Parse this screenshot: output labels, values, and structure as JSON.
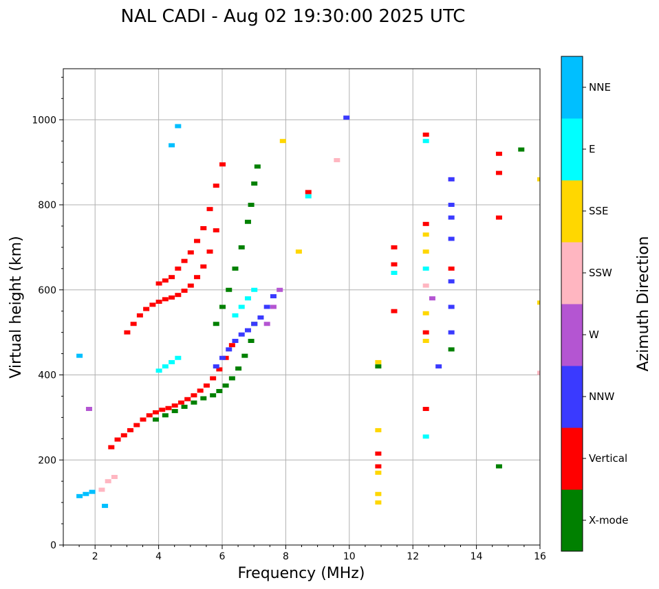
{
  "chart_data": {
    "type": "scatter",
    "title": "NAL CADI - Aug 02 19:30:00 2025 UTC",
    "xlabel": "Frequency (MHz)",
    "ylabel": "Virtual height (km)",
    "xlim": [
      1,
      16
    ],
    "ylim": [
      0,
      1120
    ],
    "x_ticks": [
      2,
      4,
      6,
      8,
      10,
      12,
      14,
      16
    ],
    "y_ticks": [
      0,
      200,
      400,
      600,
      800,
      1000
    ],
    "grid": true,
    "colorbar": {
      "label": "Azimuth Direction",
      "position": "right",
      "categories": [
        {
          "name": "X-mode",
          "color": "#008000"
        },
        {
          "name": "Vertical",
          "color": "#ff0000"
        },
        {
          "name": "NNW",
          "color": "#3a3aff"
        },
        {
          "name": "W",
          "color": "#b455d2"
        },
        {
          "name": "SSW",
          "color": "#ffb6c1"
        },
        {
          "name": "SSE",
          "color": "#ffd700"
        },
        {
          "name": "E",
          "color": "#00ffff"
        },
        {
          "name": "NNE",
          "color": "#00bfff"
        }
      ]
    },
    "traces": [
      {
        "category": "Vertical",
        "points": [
          [
            2.5,
            230
          ],
          [
            2.7,
            248
          ],
          [
            2.9,
            258
          ],
          [
            3.1,
            270
          ],
          [
            3.3,
            282
          ],
          [
            3.5,
            295
          ],
          [
            3.7,
            305
          ],
          [
            3.9,
            312
          ],
          [
            4.1,
            318
          ],
          [
            4.3,
            322
          ],
          [
            4.5,
            328
          ],
          [
            4.7,
            335
          ],
          [
            4.9,
            343
          ],
          [
            5.1,
            352
          ],
          [
            5.3,
            363
          ],
          [
            5.5,
            375
          ],
          [
            5.7,
            392
          ],
          [
            5.9,
            413
          ],
          [
            6.1,
            440
          ],
          [
            6.3,
            470
          ]
        ]
      },
      {
        "category": "X-mode",
        "points": [
          [
            3.9,
            295
          ],
          [
            4.2,
            305
          ],
          [
            4.5,
            315
          ],
          [
            4.8,
            325
          ],
          [
            5.1,
            335
          ],
          [
            5.4,
            345
          ],
          [
            5.7,
            352
          ],
          [
            5.9,
            362
          ],
          [
            6.1,
            375
          ],
          [
            6.3,
            392
          ],
          [
            6.5,
            415
          ],
          [
            6.7,
            445
          ],
          [
            6.9,
            480
          ],
          [
            7.0,
            520
          ]
        ]
      },
      {
        "category": "Vertical",
        "points": [
          [
            4.0,
            615
          ],
          [
            4.2,
            622
          ],
          [
            4.4,
            630
          ],
          [
            4.6,
            650
          ],
          [
            4.8,
            668
          ],
          [
            5.0,
            688
          ],
          [
            5.2,
            715
          ],
          [
            5.4,
            745
          ],
          [
            5.6,
            790
          ],
          [
            5.8,
            845
          ],
          [
            6.0,
            895
          ]
        ]
      },
      {
        "category": "Vertical",
        "points": [
          [
            3.0,
            500
          ],
          [
            3.2,
            520
          ],
          [
            3.4,
            540
          ],
          [
            3.6,
            555
          ],
          [
            3.8,
            565
          ],
          [
            4.0,
            572
          ],
          [
            4.2,
            578
          ],
          [
            4.4,
            582
          ],
          [
            4.6,
            588
          ],
          [
            4.8,
            598
          ],
          [
            5.0,
            610
          ],
          [
            5.2,
            630
          ],
          [
            5.4,
            655
          ],
          [
            5.6,
            690
          ],
          [
            5.8,
            740
          ]
        ]
      },
      {
        "category": "NNW",
        "points": [
          [
            5.8,
            420
          ],
          [
            6.0,
            440
          ],
          [
            6.2,
            460
          ],
          [
            6.4,
            480
          ],
          [
            6.6,
            495
          ],
          [
            6.8,
            505
          ],
          [
            7.0,
            520
          ],
          [
            7.2,
            535
          ],
          [
            7.4,
            560
          ],
          [
            7.6,
            585
          ]
        ]
      },
      {
        "category": "X-mode",
        "points": [
          [
            5.8,
            520
          ],
          [
            6.0,
            560
          ],
          [
            6.2,
            600
          ],
          [
            6.4,
            650
          ],
          [
            6.6,
            700
          ],
          [
            6.8,
            760
          ],
          [
            6.9,
            800
          ],
          [
            7.0,
            850
          ],
          [
            7.1,
            890
          ]
        ]
      },
      {
        "category": "E",
        "points": [
          [
            4.0,
            410
          ],
          [
            4.2,
            420
          ],
          [
            4.4,
            430
          ],
          [
            4.6,
            440
          ],
          [
            6.4,
            540
          ],
          [
            6.6,
            560
          ],
          [
            6.8,
            580
          ],
          [
            7.0,
            600
          ]
        ]
      },
      {
        "category": "W",
        "points": [
          [
            7.4,
            520
          ],
          [
            7.6,
            560
          ],
          [
            7.8,
            600
          ],
          [
            1.8,
            320
          ],
          [
            13.2,
            860
          ],
          [
            12.6,
            580
          ]
        ]
      },
      {
        "category": "NNW",
        "points": [
          [
            13.2,
            500
          ],
          [
            13.2,
            560
          ],
          [
            13.2,
            620
          ],
          [
            13.2,
            720
          ],
          [
            13.2,
            770
          ],
          [
            13.2,
            800
          ],
          [
            13.2,
            860
          ],
          [
            12.8,
            420
          ],
          [
            9.9,
            1005
          ]
        ]
      },
      {
        "category": "SSE",
        "points": [
          [
            10.9,
            100
          ],
          [
            10.9,
            120
          ],
          [
            10.9,
            170
          ],
          [
            10.9,
            270
          ],
          [
            10.9,
            430
          ],
          [
            12.4,
            480
          ],
          [
            12.4,
            545
          ],
          [
            12.4,
            690
          ],
          [
            12.4,
            730
          ],
          [
            16,
            570
          ],
          [
            16,
            860
          ],
          [
            8.4,
            690
          ],
          [
            7.9,
            950
          ]
        ]
      },
      {
        "category": "Vertical",
        "points": [
          [
            10.9,
            185
          ],
          [
            10.9,
            215
          ],
          [
            11.4,
            550
          ],
          [
            11.4,
            660
          ],
          [
            11.4,
            700
          ],
          [
            12.4,
            320
          ],
          [
            12.4,
            500
          ],
          [
            12.4,
            755
          ],
          [
            12.4,
            965
          ],
          [
            13.2,
            650
          ],
          [
            14.7,
            770
          ],
          [
            14.7,
            875
          ],
          [
            14.7,
            920
          ],
          [
            8.7,
            830
          ]
        ]
      },
      {
        "category": "X-mode",
        "points": [
          [
            14.7,
            185
          ],
          [
            15.4,
            930
          ],
          [
            10.9,
            420
          ],
          [
            13.2,
            460
          ]
        ]
      },
      {
        "category": "E",
        "points": [
          [
            12.4,
            255
          ],
          [
            12.4,
            650
          ],
          [
            12.4,
            950
          ],
          [
            11.4,
            640
          ],
          [
            8.7,
            820
          ]
        ]
      },
      {
        "category": "SSW",
        "points": [
          [
            2.2,
            130
          ],
          [
            2.4,
            150
          ],
          [
            2.6,
            160
          ],
          [
            16,
            405
          ],
          [
            12.4,
            610
          ],
          [
            9.6,
            905
          ]
        ]
      },
      {
        "category": "NNE",
        "points": [
          [
            1.5,
            115
          ],
          [
            1.7,
            120
          ],
          [
            1.9,
            125
          ],
          [
            2.3,
            92
          ],
          [
            1.5,
            445
          ],
          [
            4.4,
            940
          ],
          [
            4.6,
            985
          ]
        ]
      }
    ]
  }
}
